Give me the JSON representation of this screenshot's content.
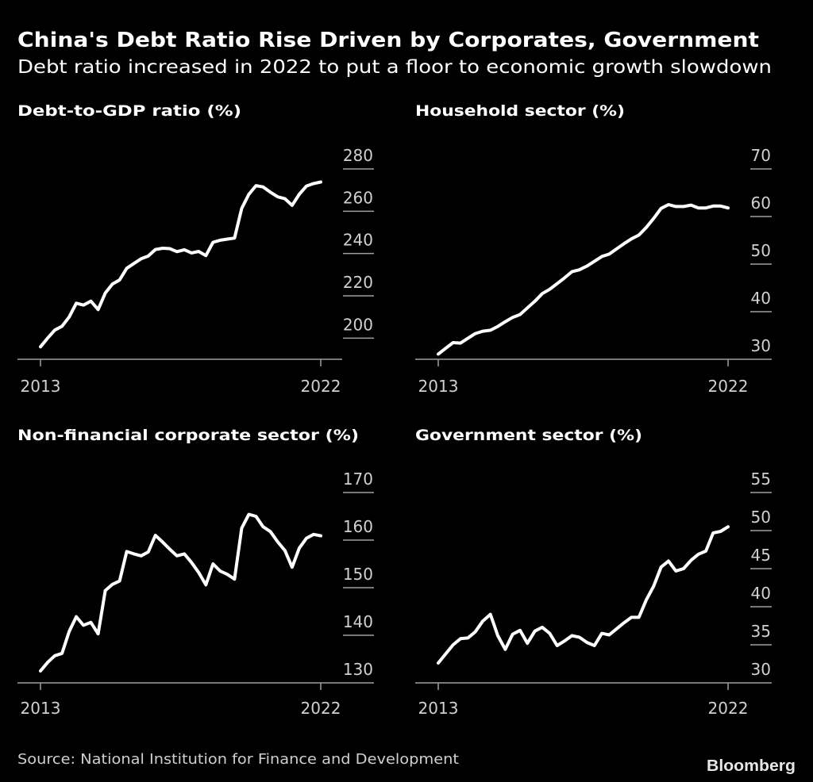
{
  "title": "China's Debt Ratio Rise Driven by Corporates, Government",
  "subtitle": "Debt ratio increased in 2022 to put a floor to economic growth slowdown",
  "source": "Source: National Institution for Finance and Development",
  "logo": "Bloomberg",
  "colors": {
    "background": "#000000",
    "line": "#ffffff",
    "grid": "#a0a0a0",
    "text": "#d0d0d0"
  },
  "chart_data": [
    {
      "type": "line",
      "title": "Debt-to-GDP ratio (%)",
      "xticks": [
        "2013",
        "2022"
      ],
      "yticks": [
        "200",
        "220",
        "240",
        "260",
        "280"
      ],
      "ylim": [
        190,
        280
      ],
      "x": [
        2013.0,
        2013.23,
        2013.46,
        2013.69,
        2013.92,
        2014.15,
        2014.38,
        2014.62,
        2014.85,
        2015.08,
        2015.31,
        2015.54,
        2015.77,
        2016.0,
        2016.23,
        2016.46,
        2016.69,
        2016.92,
        2017.15,
        2017.38,
        2017.62,
        2017.85,
        2018.08,
        2018.31,
        2018.54,
        2018.77,
        2019.0,
        2019.23,
        2019.46,
        2019.69,
        2019.92,
        2020.15,
        2020.38,
        2020.62,
        2020.85,
        2021.08,
        2021.31,
        2021.54,
        2021.77,
        2022.0
      ],
      "values": [
        195.9,
        200,
        203.8,
        205.6,
        210,
        216.5,
        215.6,
        217.5,
        213.5,
        221.3,
        225.6,
        227.5,
        233,
        235.3,
        237.5,
        238.8,
        241.9,
        242.5,
        242.3,
        240.9,
        241.8,
        240.3,
        241,
        239,
        245.3,
        246.3,
        246.8,
        247.3,
        261.3,
        268,
        272.1,
        271.5,
        269,
        266.8,
        265.9,
        262.8,
        268,
        271.9,
        273.1,
        273.8
      ]
    },
    {
      "type": "line",
      "title": "Household sector (%)",
      "xticks": [
        "2013",
        "2022"
      ],
      "yticks": [
        "30",
        "40",
        "50",
        "60",
        "70"
      ],
      "ylim": [
        30,
        70
      ],
      "x": [
        2013.0,
        2013.23,
        2013.46,
        2013.69,
        2013.92,
        2014.15,
        2014.38,
        2014.62,
        2014.85,
        2015.08,
        2015.31,
        2015.54,
        2015.77,
        2016.0,
        2016.23,
        2016.46,
        2016.69,
        2016.92,
        2017.15,
        2017.38,
        2017.62,
        2017.85,
        2018.08,
        2018.31,
        2018.54,
        2018.77,
        2019.0,
        2019.23,
        2019.46,
        2019.69,
        2019.92,
        2020.15,
        2020.38,
        2020.62,
        2020.85,
        2021.08,
        2021.31,
        2021.54,
        2021.77,
        2022.0
      ],
      "values": [
        31.1,
        32.3,
        33.5,
        33.4,
        34.4,
        35.4,
        35.9,
        36.1,
        36.9,
        37.9,
        38.8,
        39.4,
        40.8,
        42.2,
        43.8,
        44.7,
        45.9,
        47.1,
        48.4,
        48.8,
        49.6,
        50.6,
        51.6,
        52.1,
        53.2,
        54.3,
        55.3,
        56.1,
        57.7,
        59.6,
        61.7,
        62.5,
        62.1,
        62.1,
        62.4,
        61.8,
        61.8,
        62.2,
        62.2,
        61.8
      ]
    },
    {
      "type": "line",
      "title": "Non-financial corporate sector (%)",
      "xticks": [
        "2013",
        "2022"
      ],
      "yticks": [
        "130",
        "140",
        "150",
        "160",
        "170"
      ],
      "ylim": [
        130,
        170
      ],
      "x": [
        2013.0,
        2013.23,
        2013.46,
        2013.69,
        2013.92,
        2014.15,
        2014.38,
        2014.62,
        2014.85,
        2015.08,
        2015.31,
        2015.54,
        2015.77,
        2016.0,
        2016.23,
        2016.46,
        2016.69,
        2016.92,
        2017.15,
        2017.38,
        2017.62,
        2017.85,
        2018.08,
        2018.31,
        2018.54,
        2018.77,
        2019.0,
        2019.23,
        2019.46,
        2019.69,
        2019.92,
        2020.15,
        2020.38,
        2020.62,
        2020.85,
        2021.08,
        2021.31,
        2021.54,
        2021.77,
        2022.0
      ],
      "values": [
        132.5,
        134.3,
        135.7,
        136.2,
        140.8,
        143.9,
        142.1,
        142.7,
        140.3,
        149.4,
        150.7,
        151.4,
        157.6,
        157.1,
        156.7,
        157.5,
        161,
        159.6,
        158.1,
        156.7,
        157.1,
        155.3,
        153.2,
        150.6,
        155,
        153.5,
        152.8,
        151.8,
        162.5,
        165.4,
        165,
        162.8,
        161.8,
        159.6,
        157.8,
        154.3,
        158.3,
        160.4,
        161.2,
        160.9
      ]
    },
    {
      "type": "line",
      "title": "Government sector (%)",
      "xticks": [
        "2013",
        "2022"
      ],
      "yticks": [
        "30",
        "35",
        "40",
        "45",
        "50",
        "55"
      ],
      "ylim": [
        30,
        55
      ],
      "x": [
        2013.0,
        2013.23,
        2013.46,
        2013.69,
        2013.92,
        2014.15,
        2014.38,
        2014.62,
        2014.85,
        2015.08,
        2015.31,
        2015.54,
        2015.77,
        2016.0,
        2016.23,
        2016.46,
        2016.69,
        2016.92,
        2017.15,
        2017.38,
        2017.62,
        2017.85,
        2018.08,
        2018.31,
        2018.54,
        2018.77,
        2019.0,
        2019.23,
        2019.46,
        2019.69,
        2019.92,
        2020.15,
        2020.38,
        2020.62,
        2020.85,
        2021.08,
        2021.31,
        2021.54,
        2021.77,
        2022.0
      ],
      "values": [
        32.6,
        33.8,
        35,
        35.8,
        35.9,
        36.7,
        38.1,
        39,
        36.2,
        34.4,
        36.4,
        36.9,
        35.2,
        36.8,
        37.3,
        36.5,
        34.9,
        35.5,
        36.2,
        36,
        35.3,
        34.9,
        36.5,
        36.3,
        37.1,
        37.9,
        38.6,
        38.6,
        40.9,
        42.7,
        45.2,
        46,
        44.7,
        45,
        46.1,
        46.9,
        47.3,
        49.7,
        49.9,
        50.5
      ]
    }
  ]
}
